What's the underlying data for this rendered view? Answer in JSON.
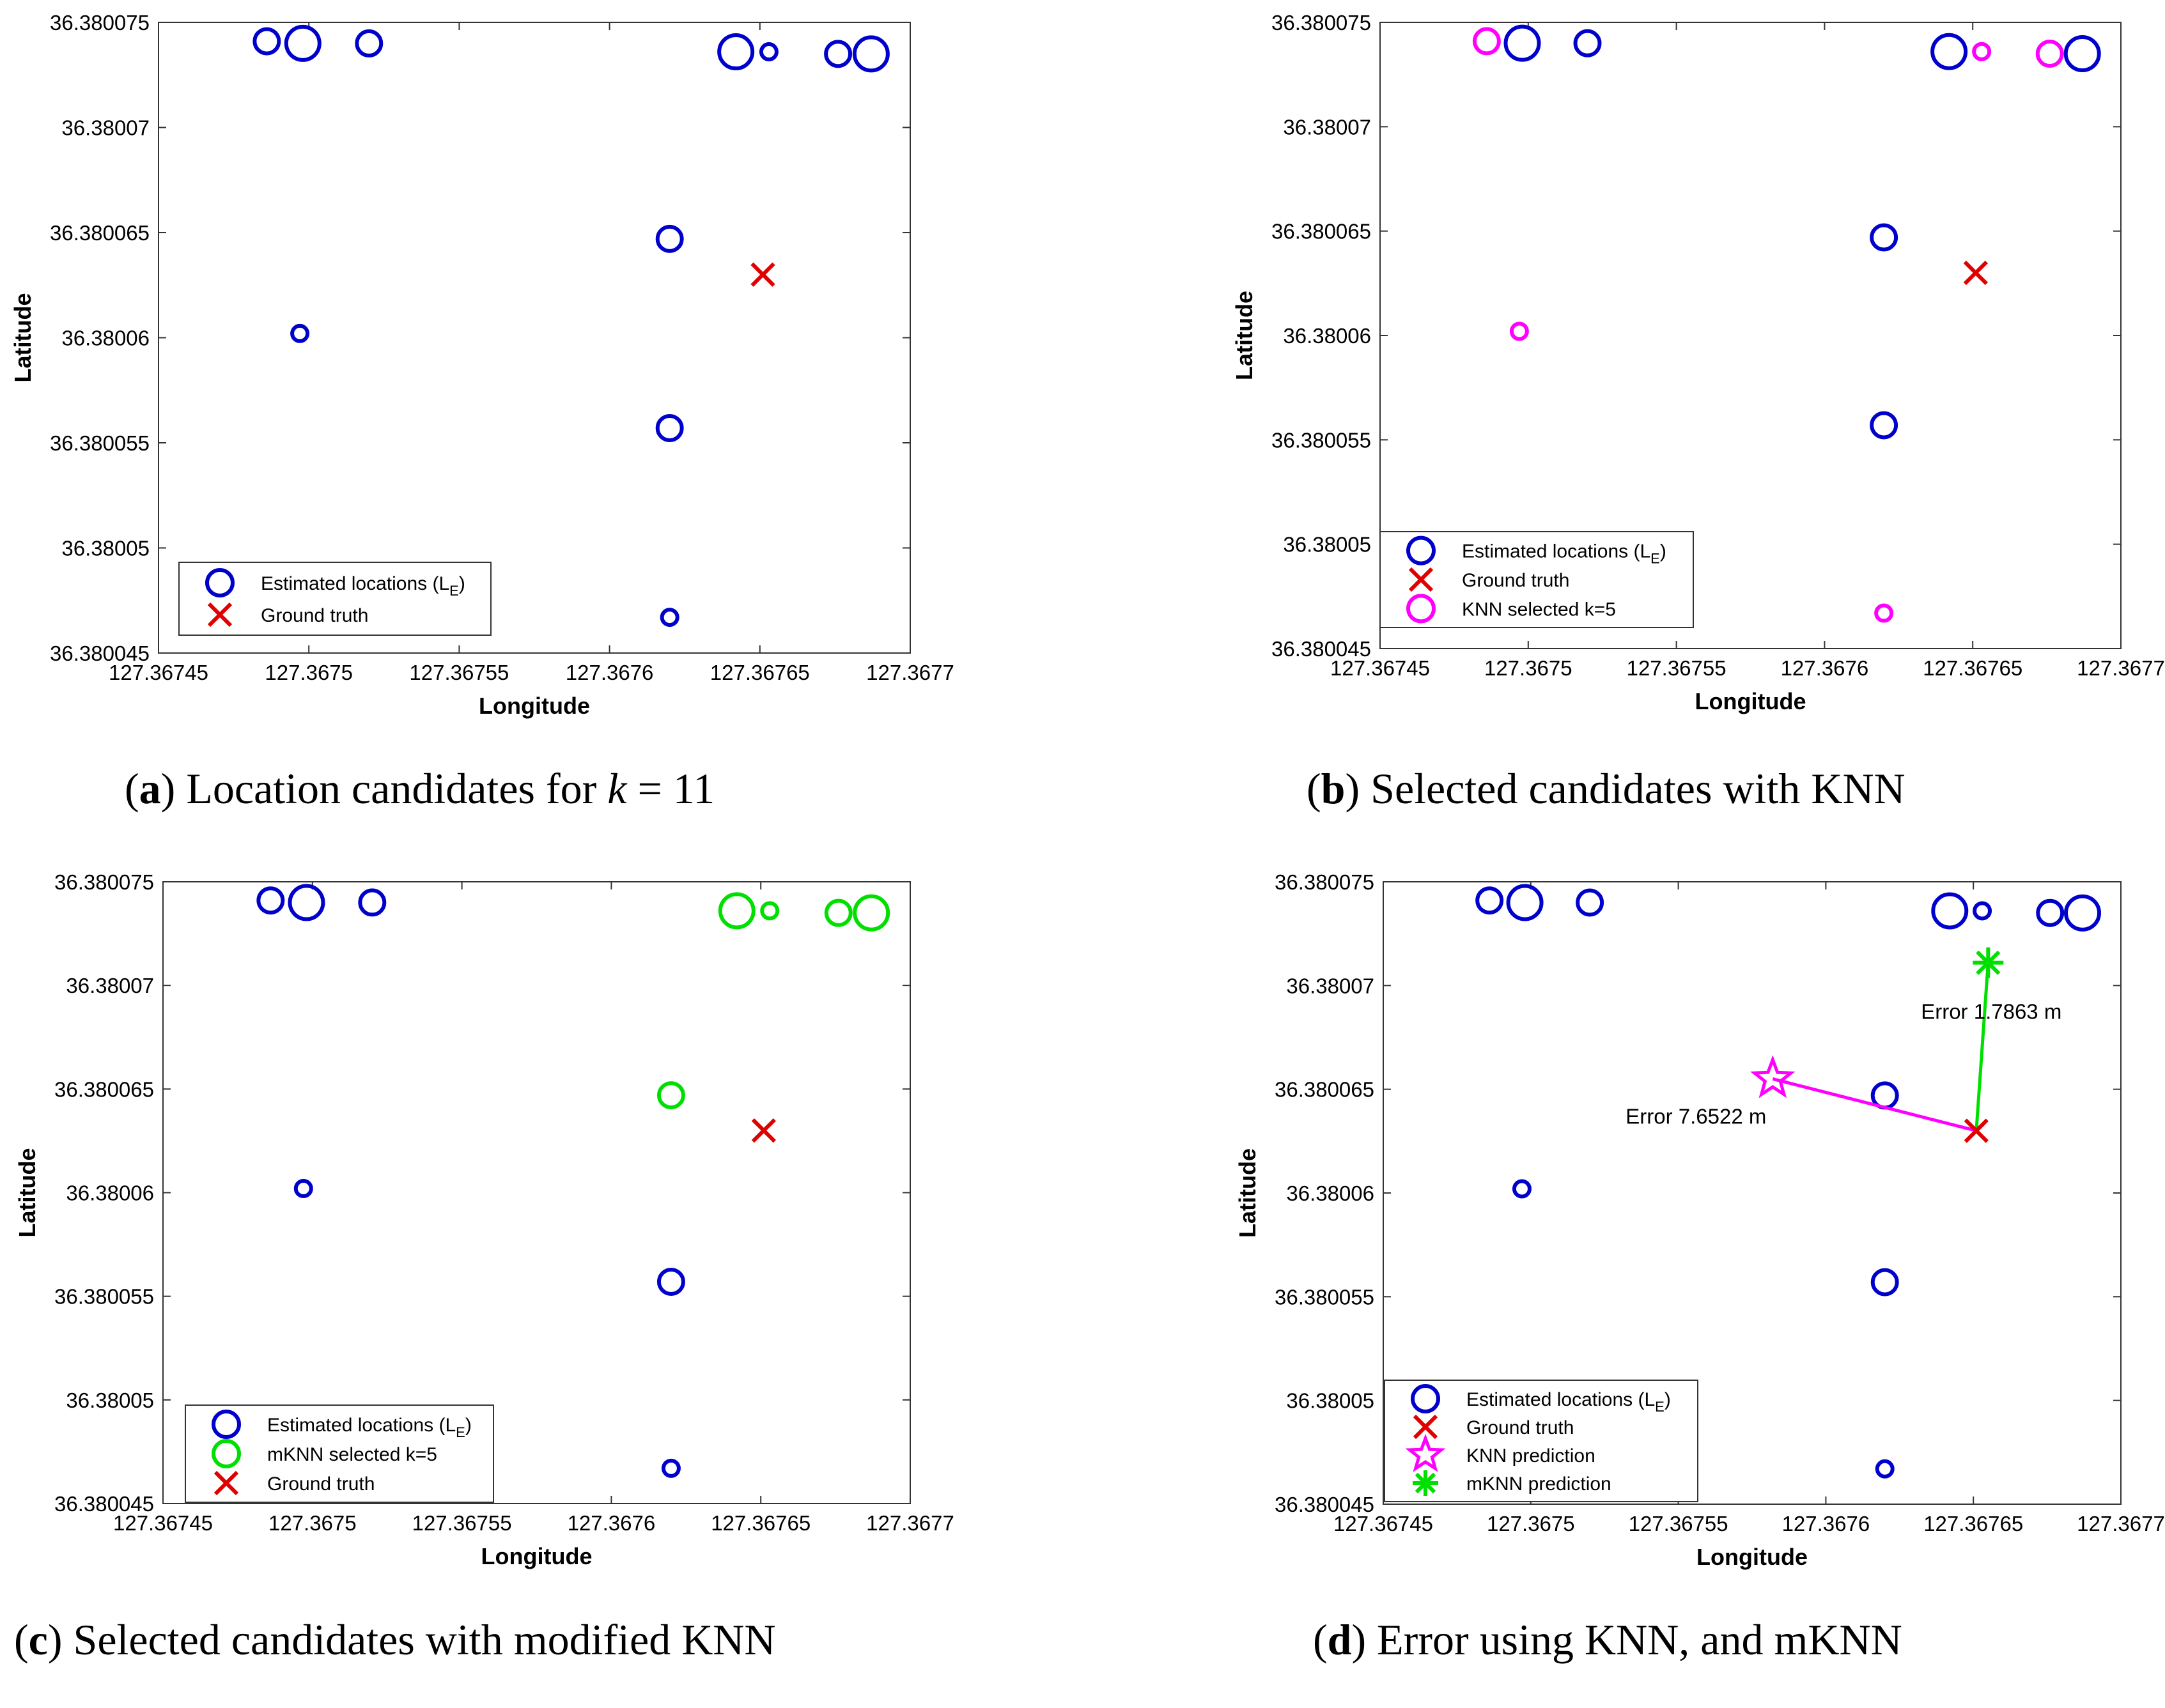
{
  "figure": {
    "panels": [
      {
        "id": "a",
        "caption": {
          "label": "a",
          "pre": "Location candidates for ",
          "math_var": "k",
          "post": " = 11"
        },
        "legend": [
          {
            "marker": "circle",
            "color": "#0000cc",
            "label": "Estimated locations (L",
            "sub": "E",
            "close": ")"
          },
          {
            "marker": "x",
            "color": "#e00000",
            "label": "Ground truth"
          }
        ]
      },
      {
        "id": "b",
        "caption": {
          "label": "b",
          "pre": "Selected candidates with KNN",
          "math_var": "",
          "post": ""
        },
        "legend": [
          {
            "marker": "circle",
            "color": "#0000cc",
            "label": "Estimated locations (L",
            "sub": "E",
            "close": ")"
          },
          {
            "marker": "x",
            "color": "#e00000",
            "label": "Ground truth"
          },
          {
            "marker": "circle",
            "color": "#ff00ff",
            "label": "KNN selected k=5"
          }
        ]
      },
      {
        "id": "c",
        "caption": {
          "label": "c",
          "pre": "Selected candidates with modified KNN",
          "math_var": "",
          "post": ""
        },
        "legend": [
          {
            "marker": "circle",
            "color": "#0000cc",
            "label": "Estimated locations (L",
            "sub": "E",
            "close": ")"
          },
          {
            "marker": "circle",
            "color": "#00e000",
            "label": "mKNN selected k=5"
          },
          {
            "marker": "x",
            "color": "#e00000",
            "label": "Ground truth"
          }
        ]
      },
      {
        "id": "d",
        "caption": {
          "label": "d",
          "pre": "Error using KNN, and mKNN",
          "math_var": "",
          "post": ""
        },
        "legend": [
          {
            "marker": "circle",
            "color": "#0000cc",
            "label": "Estimated locations (L",
            "sub": "E",
            "close": ")"
          },
          {
            "marker": "x",
            "color": "#e00000",
            "label": "Ground truth"
          },
          {
            "marker": "star",
            "color": "#ff00ff",
            "label": "KNN prediction"
          },
          {
            "marker": "asterisk",
            "color": "#00e000",
            "label": "mKNN prediction"
          }
        ]
      }
    ]
  },
  "chart_data": {
    "type": "scatter",
    "xlabel": "Longitude",
    "ylabel": "Latitude",
    "xlim": [
      127.36745,
      127.3677
    ],
    "ylim": [
      36.380045,
      36.380075
    ],
    "xticks": [
      127.36745,
      127.3675,
      127.36755,
      127.3676,
      127.36765,
      127.3677
    ],
    "xtick_labels": [
      "127.36745",
      "127.3675",
      "127.36755",
      "127.3676",
      "127.36765",
      "127.3677"
    ],
    "yticks": [
      36.380045,
      36.38005,
      36.380055,
      36.38006,
      36.380065,
      36.38007,
      36.380075
    ],
    "ytick_labels": [
      "36.380045",
      "36.38005",
      "36.380055",
      "36.38006",
      "36.380065",
      "36.38007",
      "36.380075"
    ],
    "candidates": [
      {
        "lon": 127.367486,
        "lat": 36.3800741,
        "size": "medium"
      },
      {
        "lon": 127.367498,
        "lat": 36.380074,
        "size": "large"
      },
      {
        "lon": 127.36752,
        "lat": 36.380074,
        "size": "medium"
      },
      {
        "lon": 127.367497,
        "lat": 36.3800602,
        "size": "small"
      },
      {
        "lon": 127.36762,
        "lat": 36.3800647,
        "size": "medium"
      },
      {
        "lon": 127.36762,
        "lat": 36.3800557,
        "size": "medium"
      },
      {
        "lon": 127.36762,
        "lat": 36.3800467,
        "size": "small"
      },
      {
        "lon": 127.367642,
        "lat": 36.3800736,
        "size": "large"
      },
      {
        "lon": 127.367653,
        "lat": 36.3800736,
        "size": "small"
      },
      {
        "lon": 127.367676,
        "lat": 36.3800735,
        "size": "medium"
      },
      {
        "lon": 127.367687,
        "lat": 36.3800735,
        "size": "large"
      }
    ],
    "ground_truth": {
      "lon": 127.367651,
      "lat": 36.380063
    },
    "knn_selected_indices": [
      0,
      3,
      6,
      8,
      9
    ],
    "mknn_selected_indices": [
      4,
      7,
      8,
      9,
      10
    ],
    "knn_prediction": {
      "lon": 127.367582,
      "lat": 36.3800655,
      "error_label": "Error 7.6522 m"
    },
    "mknn_prediction": {
      "lon": 127.367655,
      "lat": 36.3800711,
      "error_label": "Error 1.7863 m"
    }
  }
}
